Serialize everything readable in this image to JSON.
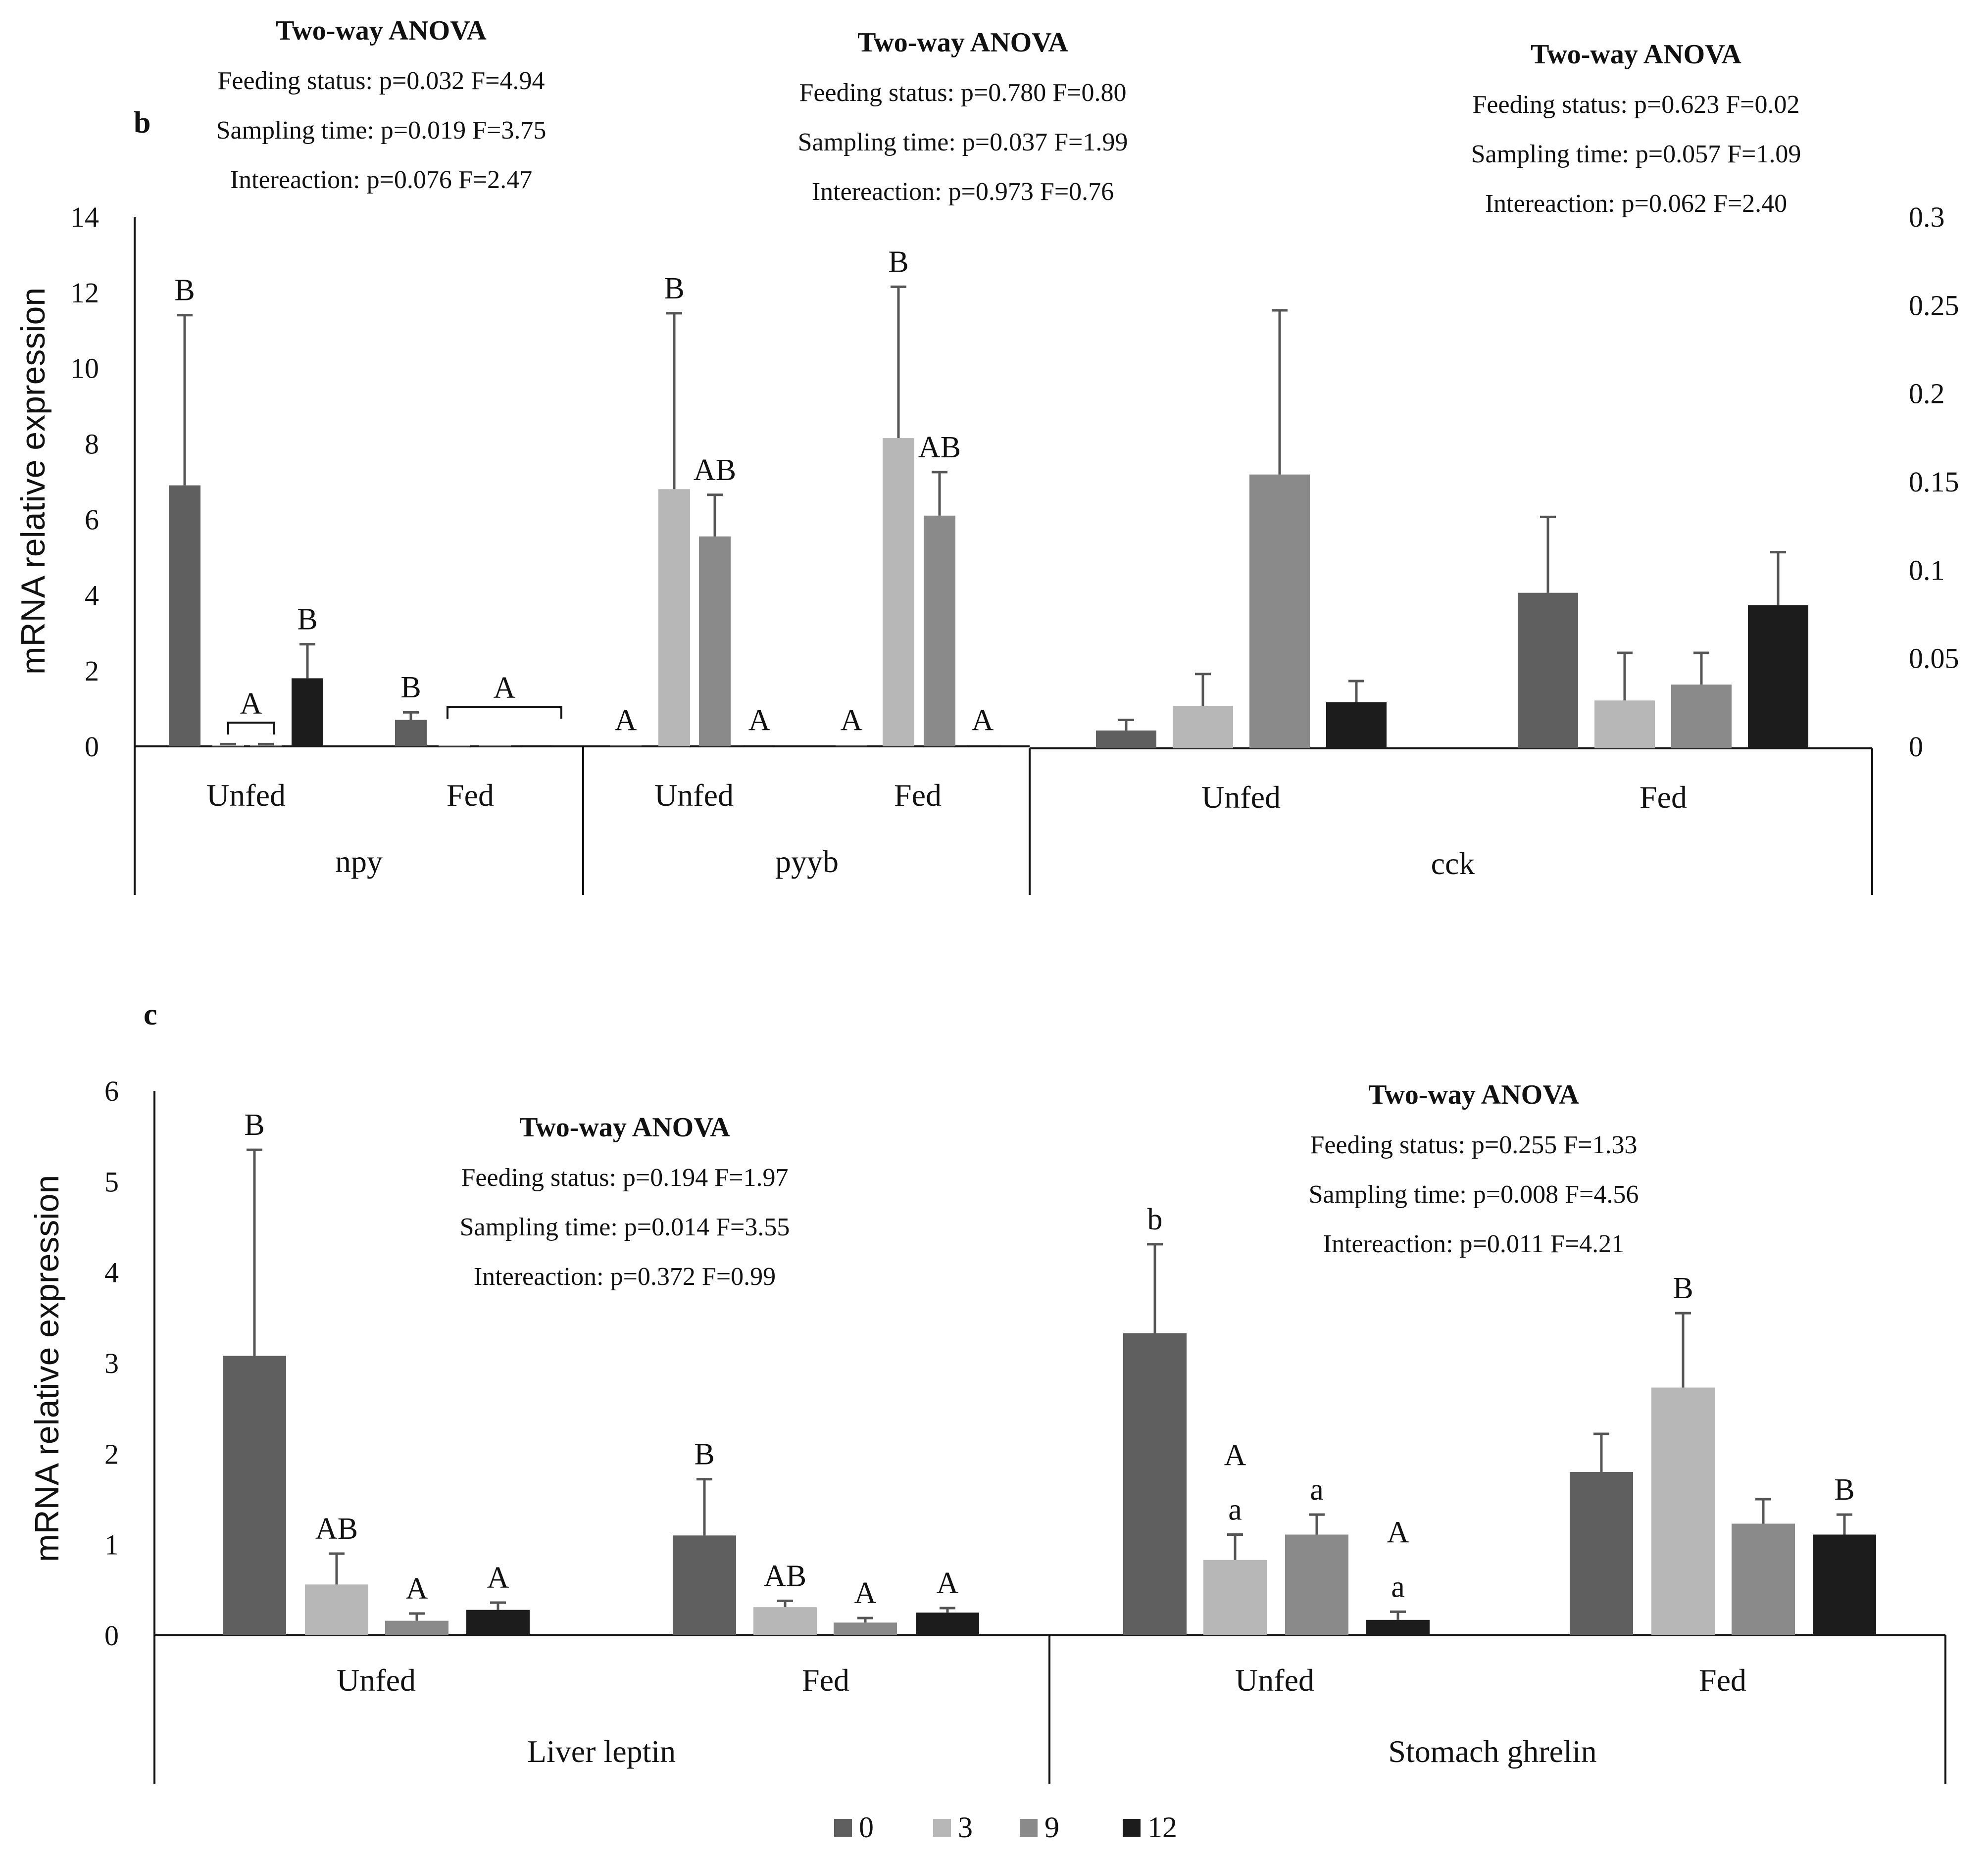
{
  "panels": {
    "b": "b",
    "c": "c"
  },
  "legend": {
    "items": [
      {
        "label": "0",
        "color": "#5f5f5f"
      },
      {
        "label": "3",
        "color": "#b7b7b7"
      },
      {
        "label": "9",
        "color": "#8a8a8a"
      },
      {
        "label": "12",
        "color": "#1c1c1c"
      }
    ]
  },
  "chart_data": [
    {
      "type": "bar",
      "name": "npy",
      "group_label": "npy",
      "categories": [
        "Unfed",
        "Fed"
      ],
      "series_names": [
        "0",
        "3",
        "9",
        "12"
      ],
      "values": [
        [
          6.9,
          0.03,
          0.03,
          1.8
        ],
        [
          0.7,
          0.03,
          0.03,
          0.03
        ]
      ],
      "errors": [
        [
          4.5,
          0.03,
          0.03,
          0.9
        ],
        [
          0.2,
          0.0,
          0.0,
          0.0
        ]
      ],
      "ylabel": "mRNA relative expression",
      "ylim": [
        0,
        14
      ],
      "yticks": [
        0,
        2,
        4,
        6,
        8,
        10,
        12,
        14
      ],
      "letters": [
        [
          [
            "B"
          ],
          [],
          [],
          [
            "B"
          ]
        ],
        [
          [
            "B"
          ],
          [],
          [],
          []
        ]
      ],
      "bracket_letters": [
        "A",
        "A"
      ],
      "anova": {
        "title": "Two-way ANOVA",
        "lines": [
          "Feeding status: p=0.032 F=4.94",
          "Sampling time: p=0.019 F=3.75",
          "Intereaction: p=0.076 F=2.47"
        ]
      }
    },
    {
      "type": "bar",
      "name": "pyyb",
      "group_label": "pyyb",
      "categories": [
        "Unfed",
        "Fed"
      ],
      "series_names": [
        "0",
        "3",
        "9",
        "12"
      ],
      "values": [
        [
          0.03,
          6.8,
          5.55,
          0.03
        ],
        [
          0.03,
          8.15,
          6.1,
          0.03
        ]
      ],
      "errors": [
        [
          0.0,
          4.65,
          1.1,
          0.0
        ],
        [
          0.0,
          4.0,
          1.15,
          0.0
        ]
      ],
      "ylim": [
        0,
        14
      ],
      "letters": [
        [
          [
            "A"
          ],
          [
            "B"
          ],
          [
            "AB"
          ],
          [
            "A"
          ]
        ],
        [
          [
            "A"
          ],
          [
            "B"
          ],
          [
            "AB"
          ],
          [
            "A"
          ]
        ]
      ],
      "anova": {
        "title": "Two-way ANOVA",
        "lines": [
          "Feeding status: p=0.780 F=0.80",
          "Sampling time: p=0.037 F=1.99",
          "Intereaction: p=0.973 F=0.76"
        ]
      }
    },
    {
      "type": "bar",
      "name": "cck",
      "group_label": "cck",
      "categories": [
        "Unfed",
        "Fed"
      ],
      "series_names": [
        "0",
        "3",
        "9",
        "12"
      ],
      "values": [
        [
          0.009,
          0.023,
          0.154,
          0.025
        ],
        [
          0.087,
          0.026,
          0.035,
          0.08
        ]
      ],
      "errors": [
        [
          0.006,
          0.018,
          0.093,
          0.012
        ],
        [
          0.043,
          0.027,
          0.018,
          0.03
        ]
      ],
      "ylim": [
        0,
        0.3
      ],
      "yticks": [
        "0",
        "0.05",
        "0.1",
        "0.15",
        "0.2",
        "0.25",
        "0.3"
      ],
      "anova": {
        "title": "Two-way ANOVA",
        "lines": [
          "Feeding status: p=0.623 F=0.02",
          "Sampling time: p=0.057 F=1.09",
          "Intereaction: p=0.062 F=2.40"
        ]
      }
    },
    {
      "type": "bar",
      "name": "Liver leptin",
      "group_label": "Liver leptin",
      "categories": [
        "Unfed",
        "Fed"
      ],
      "series_names": [
        "0",
        "3",
        "9",
        "12"
      ],
      "values": [
        [
          3.08,
          0.56,
          0.16,
          0.28
        ],
        [
          1.1,
          0.31,
          0.14,
          0.25
        ]
      ],
      "errors": [
        [
          2.27,
          0.34,
          0.08,
          0.08
        ],
        [
          0.62,
          0.07,
          0.05,
          0.05
        ]
      ],
      "ylabel": "mRNA relative expression",
      "ylim": [
        0,
        6
      ],
      "yticks": [
        0,
        1,
        2,
        3,
        4,
        5,
        6
      ],
      "letters": [
        [
          [
            "B"
          ],
          [
            "AB"
          ],
          [
            "A"
          ],
          [
            "A"
          ]
        ],
        [
          [
            "B"
          ],
          [
            "AB"
          ],
          [
            "A"
          ],
          [
            "A"
          ]
        ]
      ],
      "anova": {
        "title": "Two-way ANOVA",
        "lines": [
          "Feeding status: p=0.194 F=1.97",
          "Sampling time: p=0.014 F=3.55",
          "Intereaction: p=0.372 F=0.99"
        ]
      }
    },
    {
      "type": "bar",
      "name": "Stomach ghrelin",
      "group_label": "Stomach ghrelin",
      "categories": [
        "Unfed",
        "Fed"
      ],
      "series_names": [
        "0",
        "3",
        "9",
        "12"
      ],
      "values": [
        [
          3.33,
          0.83,
          1.11,
          0.17
        ],
        [
          1.8,
          2.73,
          1.23,
          1.11
        ]
      ],
      "errors": [
        [
          0.98,
          0.28,
          0.22,
          0.09
        ],
        [
          0.42,
          0.82,
          0.27,
          0.22
        ]
      ],
      "ylim": [
        0,
        6
      ],
      "letters": [
        [
          [
            "b"
          ],
          [
            "A",
            "a"
          ],
          [
            "a"
          ],
          [
            "A",
            "a"
          ]
        ],
        [
          [],
          [
            "B"
          ],
          [],
          [
            "B"
          ]
        ]
      ],
      "anova": {
        "title": "Two-way ANOVA",
        "lines": [
          "Feeding status: p=0.255 F=1.33",
          "Sampling time: p=0.008 F=4.56",
          "Intereaction: p=0.011 F=4.21"
        ]
      }
    }
  ]
}
